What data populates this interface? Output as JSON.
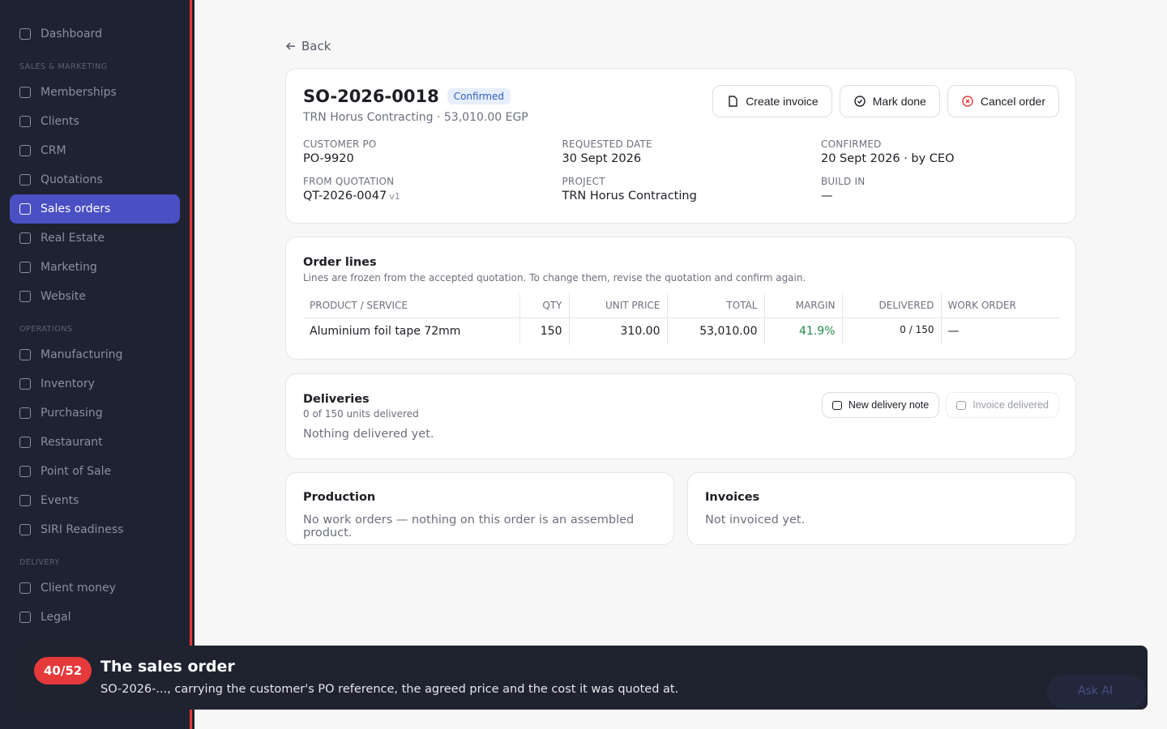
{
  "sidebar": {
    "top": [
      {
        "label": "Dashboard"
      }
    ],
    "sections": [
      {
        "title": "SALES & MARKETING",
        "items": [
          {
            "label": "Memberships"
          },
          {
            "label": "Clients"
          },
          {
            "label": "CRM"
          },
          {
            "label": "Quotations"
          },
          {
            "label": "Sales orders",
            "active": true
          },
          {
            "label": "Real Estate"
          },
          {
            "label": "Marketing"
          },
          {
            "label": "Website"
          }
        ]
      },
      {
        "title": "OPERATIONS",
        "items": [
          {
            "label": "Manufacturing"
          },
          {
            "label": "Inventory"
          },
          {
            "label": "Purchasing"
          },
          {
            "label": "Restaurant"
          },
          {
            "label": "Point of Sale"
          },
          {
            "label": "Events"
          },
          {
            "label": "SIRI Readiness"
          }
        ]
      },
      {
        "title": "DELIVERY",
        "items": [
          {
            "label": "Client money"
          },
          {
            "label": "Legal"
          }
        ]
      }
    ]
  },
  "back": "Back",
  "order": {
    "title": "SO-2026-0018",
    "status": "Confirmed",
    "subtitle": "TRN Horus Contracting · 53,010.00 EGP",
    "actions": [
      "Create invoice",
      "Mark done",
      "Cancel order"
    ],
    "fields": [
      {
        "label": "CUSTOMER PO",
        "value": "PO-9920"
      },
      {
        "label": "REQUESTED DATE",
        "value": "30 Sept 2026"
      },
      {
        "label": "CONFIRMED",
        "value": "20 Sept 2026 · by CEO"
      },
      {
        "label": "FROM QUOTATION",
        "value": "QT-2026-0047",
        "suffix": "v1"
      },
      {
        "label": "PROJECT",
        "value": "TRN Horus Contracting"
      },
      {
        "label": "BUILD IN",
        "value": "—"
      }
    ]
  },
  "order_lines": {
    "title": "Order lines",
    "note": "Lines are frozen from the accepted quotation. To change them, revise the quotation and confirm again.",
    "columns": [
      "PRODUCT / SERVICE",
      "QTY",
      "UNIT PRICE",
      "TOTAL",
      "MARGIN",
      "DELIVERED",
      "WORK ORDER"
    ],
    "rows": [
      [
        "Aluminium foil tape 72mm",
        "150",
        "310.00",
        "53,010.00",
        "41.9%",
        "0 / 150",
        "—"
      ]
    ]
  },
  "deliveries": {
    "title": "Deliveries",
    "subtitle": "0 of 150 units delivered",
    "actions": [
      "New delivery note",
      "Invoice delivered"
    ],
    "empty": "Nothing delivered yet."
  },
  "production": {
    "title": "Production",
    "text": "No work orders — nothing on this order is an assembled product."
  },
  "invoices": {
    "title": "Invoices",
    "text": "Not invoiced yet."
  },
  "tour": {
    "step": "40/52",
    "title": "The sales order",
    "text": "SO-2026-..., carrying the customer's PO reference, the agreed price and the cost it was quoted at."
  },
  "ask_ai": "Ask AI"
}
